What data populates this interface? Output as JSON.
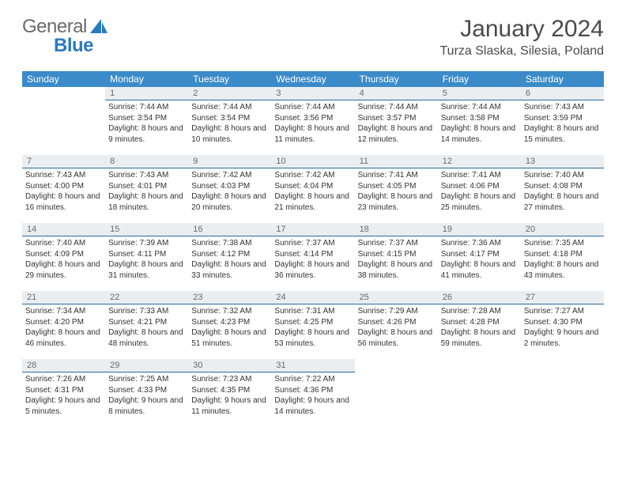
{
  "brand": {
    "general": "General",
    "blue": "Blue"
  },
  "title": "January 2024",
  "location": "Turza Slaska, Silesia, Poland",
  "colors": {
    "header_bg": "#3b8bc9",
    "header_text": "#ffffff",
    "daynum_bg": "#eaeef1",
    "daynum_border": "#2a6aa0",
    "text": "#333333",
    "logo_gray": "#6a6a6a",
    "logo_blue": "#2a7ac0"
  },
  "weekdays": [
    "Sunday",
    "Monday",
    "Tuesday",
    "Wednesday",
    "Thursday",
    "Friday",
    "Saturday"
  ],
  "start_offset": 1,
  "days": [
    {
      "n": 1,
      "sunrise": "7:44 AM",
      "sunset": "3:54 PM",
      "daylight": "8 hours and 9 minutes."
    },
    {
      "n": 2,
      "sunrise": "7:44 AM",
      "sunset": "3:54 PM",
      "daylight": "8 hours and 10 minutes."
    },
    {
      "n": 3,
      "sunrise": "7:44 AM",
      "sunset": "3:56 PM",
      "daylight": "8 hours and 11 minutes."
    },
    {
      "n": 4,
      "sunrise": "7:44 AM",
      "sunset": "3:57 PM",
      "daylight": "8 hours and 12 minutes."
    },
    {
      "n": 5,
      "sunrise": "7:44 AM",
      "sunset": "3:58 PM",
      "daylight": "8 hours and 14 minutes."
    },
    {
      "n": 6,
      "sunrise": "7:43 AM",
      "sunset": "3:59 PM",
      "daylight": "8 hours and 15 minutes."
    },
    {
      "n": 7,
      "sunrise": "7:43 AM",
      "sunset": "4:00 PM",
      "daylight": "8 hours and 16 minutes."
    },
    {
      "n": 8,
      "sunrise": "7:43 AM",
      "sunset": "4:01 PM",
      "daylight": "8 hours and 18 minutes."
    },
    {
      "n": 9,
      "sunrise": "7:42 AM",
      "sunset": "4:03 PM",
      "daylight": "8 hours and 20 minutes."
    },
    {
      "n": 10,
      "sunrise": "7:42 AM",
      "sunset": "4:04 PM",
      "daylight": "8 hours and 21 minutes."
    },
    {
      "n": 11,
      "sunrise": "7:41 AM",
      "sunset": "4:05 PM",
      "daylight": "8 hours and 23 minutes."
    },
    {
      "n": 12,
      "sunrise": "7:41 AM",
      "sunset": "4:06 PM",
      "daylight": "8 hours and 25 minutes."
    },
    {
      "n": 13,
      "sunrise": "7:40 AM",
      "sunset": "4:08 PM",
      "daylight": "8 hours and 27 minutes."
    },
    {
      "n": 14,
      "sunrise": "7:40 AM",
      "sunset": "4:09 PM",
      "daylight": "8 hours and 29 minutes."
    },
    {
      "n": 15,
      "sunrise": "7:39 AM",
      "sunset": "4:11 PM",
      "daylight": "8 hours and 31 minutes."
    },
    {
      "n": 16,
      "sunrise": "7:38 AM",
      "sunset": "4:12 PM",
      "daylight": "8 hours and 33 minutes."
    },
    {
      "n": 17,
      "sunrise": "7:37 AM",
      "sunset": "4:14 PM",
      "daylight": "8 hours and 36 minutes."
    },
    {
      "n": 18,
      "sunrise": "7:37 AM",
      "sunset": "4:15 PM",
      "daylight": "8 hours and 38 minutes."
    },
    {
      "n": 19,
      "sunrise": "7:36 AM",
      "sunset": "4:17 PM",
      "daylight": "8 hours and 41 minutes."
    },
    {
      "n": 20,
      "sunrise": "7:35 AM",
      "sunset": "4:18 PM",
      "daylight": "8 hours and 43 minutes."
    },
    {
      "n": 21,
      "sunrise": "7:34 AM",
      "sunset": "4:20 PM",
      "daylight": "8 hours and 46 minutes."
    },
    {
      "n": 22,
      "sunrise": "7:33 AM",
      "sunset": "4:21 PM",
      "daylight": "8 hours and 48 minutes."
    },
    {
      "n": 23,
      "sunrise": "7:32 AM",
      "sunset": "4:23 PM",
      "daylight": "8 hours and 51 minutes."
    },
    {
      "n": 24,
      "sunrise": "7:31 AM",
      "sunset": "4:25 PM",
      "daylight": "8 hours and 53 minutes."
    },
    {
      "n": 25,
      "sunrise": "7:29 AM",
      "sunset": "4:26 PM",
      "daylight": "8 hours and 56 minutes."
    },
    {
      "n": 26,
      "sunrise": "7:28 AM",
      "sunset": "4:28 PM",
      "daylight": "8 hours and 59 minutes."
    },
    {
      "n": 27,
      "sunrise": "7:27 AM",
      "sunset": "4:30 PM",
      "daylight": "9 hours and 2 minutes."
    },
    {
      "n": 28,
      "sunrise": "7:26 AM",
      "sunset": "4:31 PM",
      "daylight": "9 hours and 5 minutes."
    },
    {
      "n": 29,
      "sunrise": "7:25 AM",
      "sunset": "4:33 PM",
      "daylight": "9 hours and 8 minutes."
    },
    {
      "n": 30,
      "sunrise": "7:23 AM",
      "sunset": "4:35 PM",
      "daylight": "9 hours and 11 minutes."
    },
    {
      "n": 31,
      "sunrise": "7:22 AM",
      "sunset": "4:36 PM",
      "daylight": "9 hours and 14 minutes."
    }
  ],
  "labels": {
    "sunrise": "Sunrise:",
    "sunset": "Sunset:",
    "daylight": "Daylight:"
  }
}
